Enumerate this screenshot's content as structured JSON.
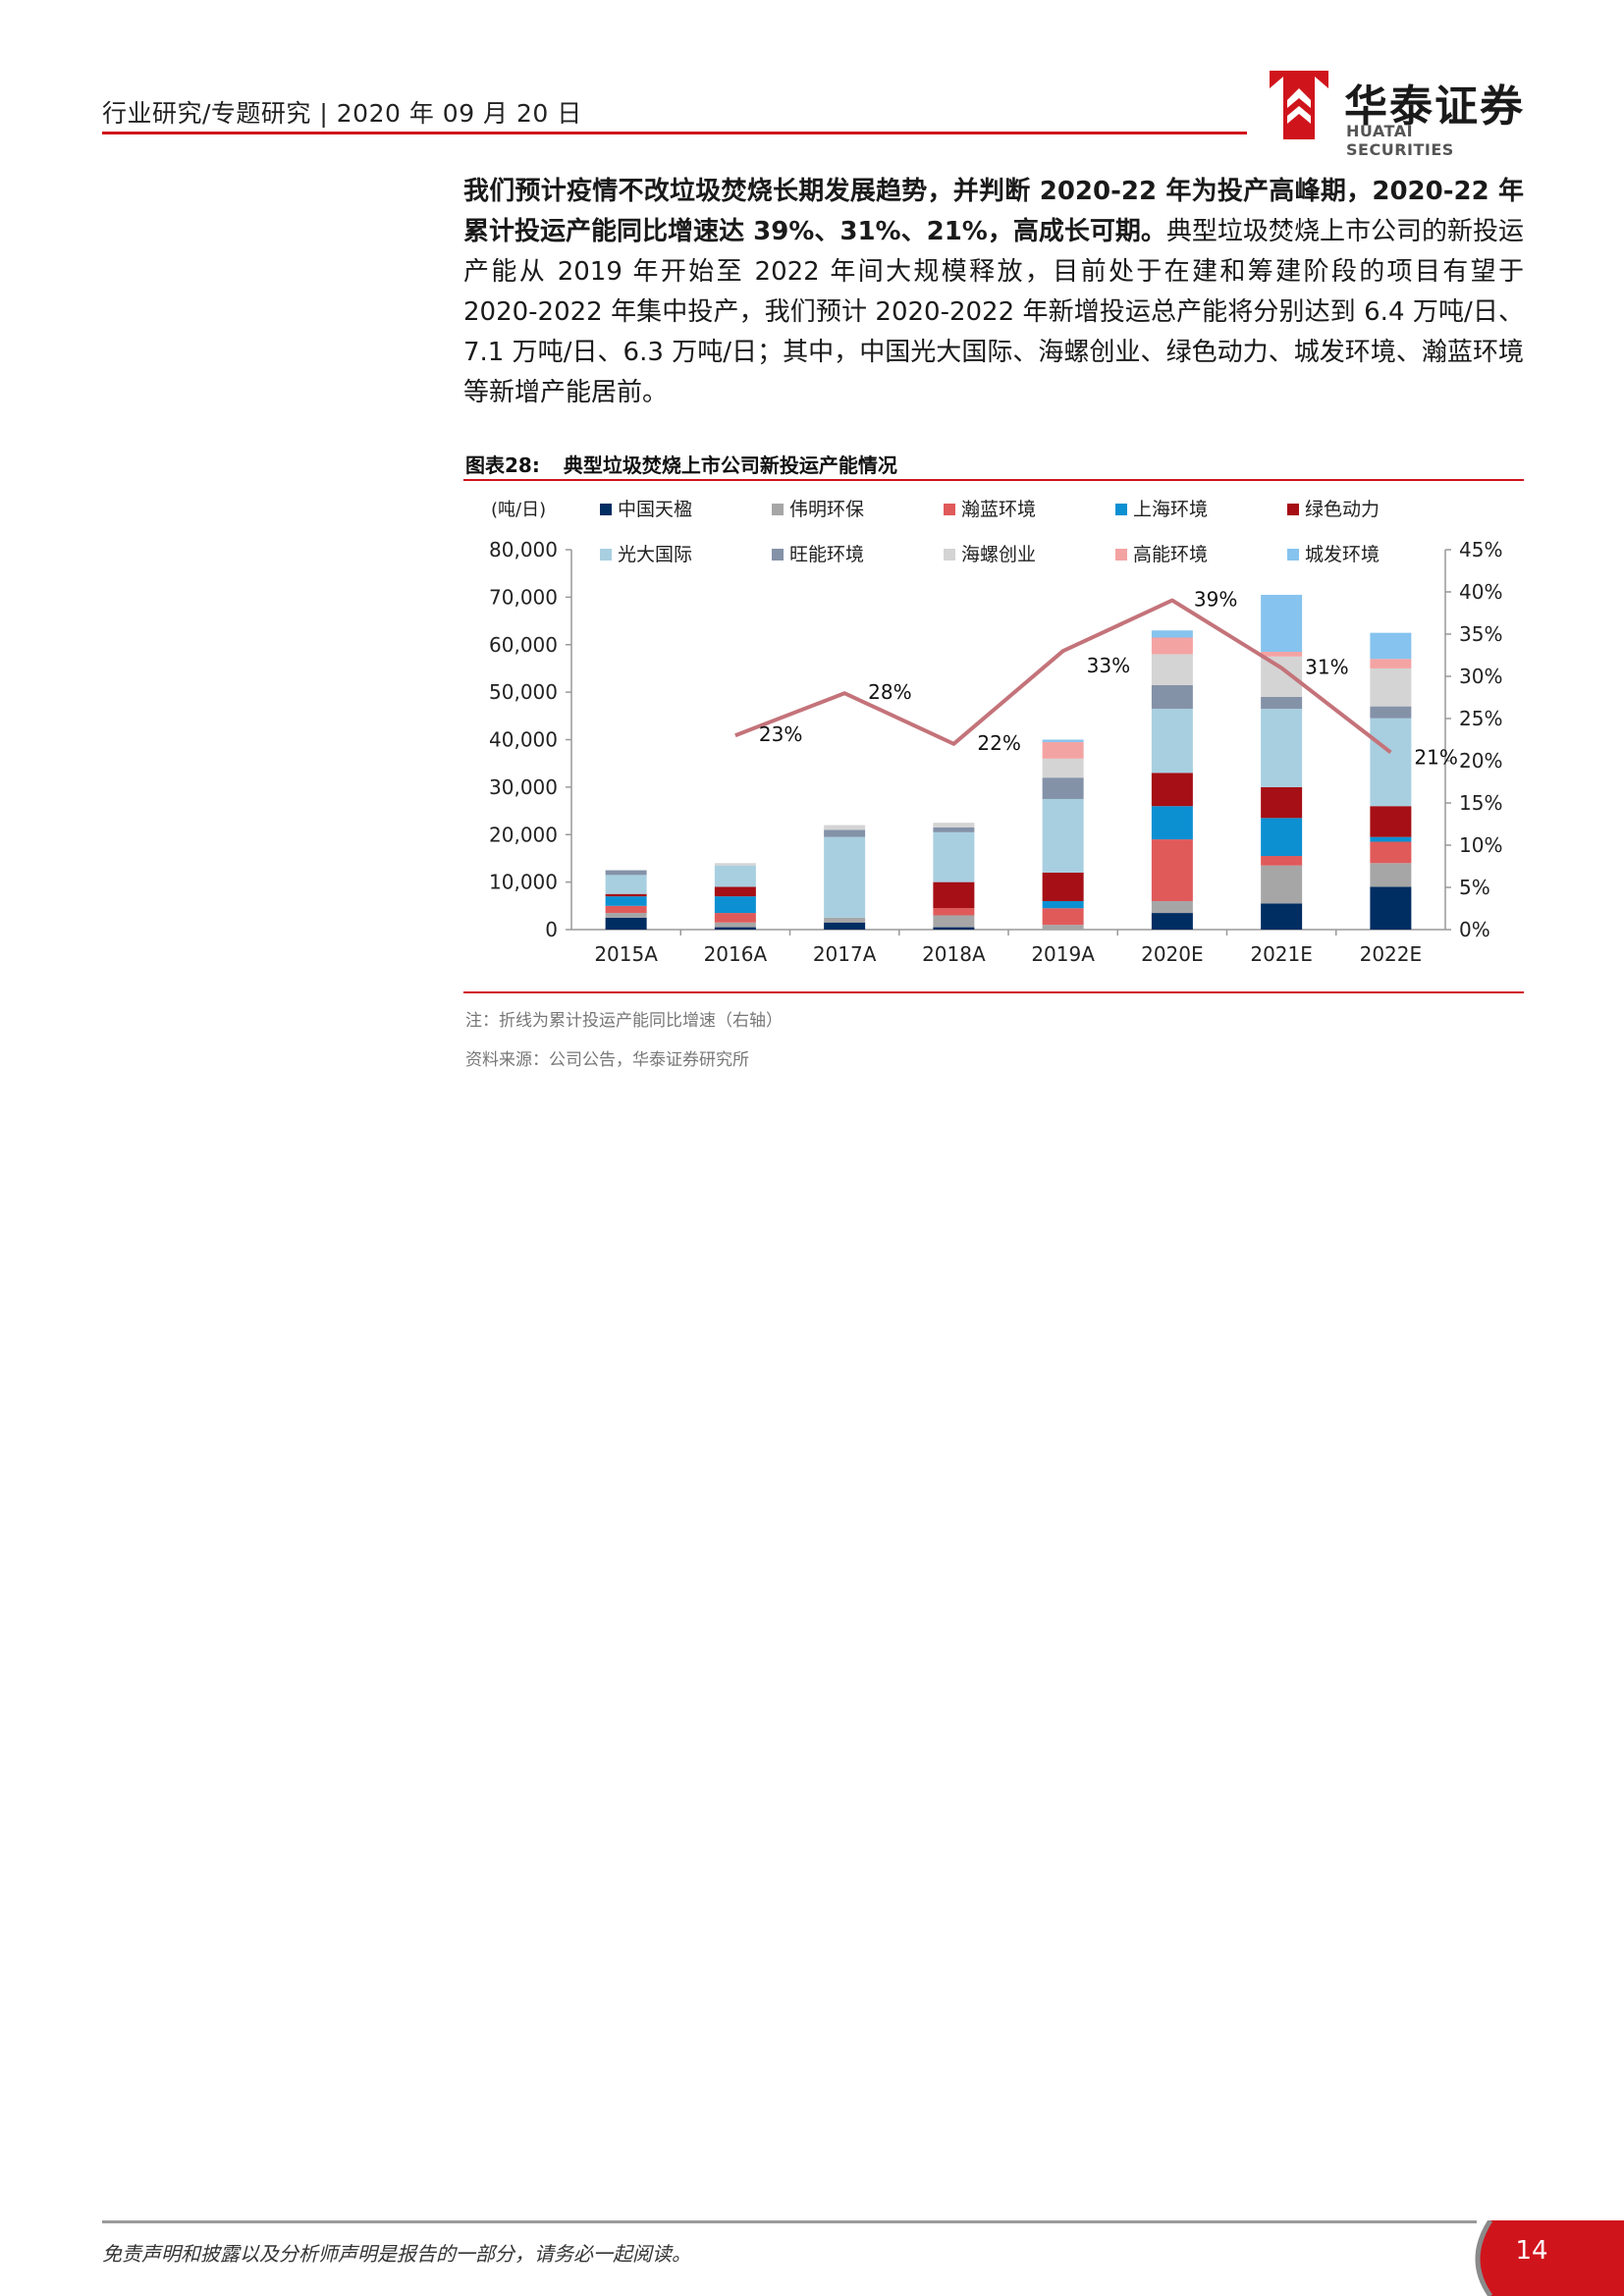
{
  "header": {
    "section": "行业研究/专题研究",
    "date": "2020 年 09 月 20 日"
  },
  "brand": {
    "name_cn": "华泰证券",
    "name_en": "HUATAI SECURITIES",
    "color": "#d0141c"
  },
  "body": {
    "bold_lead": "我们预计疫情不改垃圾焚烧长期发展趋势，并判断 2020-22 年为投产高峰期，2020-22 年累计投运产能同比增速达 39%、31%、21%，高成长可期。",
    "rest": "典型垃圾焚烧上市公司的新投运产能从 2019 年开始至 2022 年间大规模释放，目前处于在建和筹建阶段的项目有望于 2020-2022 年集中投产，我们预计 2020-2022 年新增投运总产能将分别达到 6.4 万吨/日、7.1 万吨/日、6.3 万吨/日；其中，中国光大国际、海螺创业、绿色动力、城发环境、瀚蓝环境等新增产能居前。"
  },
  "figure": {
    "number": "图表28:",
    "title": "典型垃圾焚烧上市公司新投运产能情况",
    "note": "注：折线为累计投运产能同比增速（右轴）",
    "source": "资料来源：公司公告，华泰证券研究所"
  },
  "chart_data": {
    "type": "bar",
    "stacked": true,
    "unit_label": "(吨/日)",
    "categories": [
      "2015A",
      "2016A",
      "2017A",
      "2018A",
      "2019A",
      "2020E",
      "2021E",
      "2022E"
    ],
    "y_left": {
      "range": [
        0,
        80000
      ],
      "ticks": [
        "0",
        "10,000",
        "20,000",
        "30,000",
        "40,000",
        "50,000",
        "60,000",
        "70,000",
        "80,000"
      ]
    },
    "y_right": {
      "range": [
        0,
        45
      ],
      "ticks": [
        "0%",
        "5%",
        "10%",
        "15%",
        "20%",
        "25%",
        "30%",
        "35%",
        "40%",
        "45%"
      ]
    },
    "series": [
      {
        "name": "中国天楹",
        "color": "#002d62",
        "values": [
          2500,
          500,
          1500,
          500,
          0,
          3500,
          5500,
          9000
        ]
      },
      {
        "name": "伟明环保",
        "color": "#a6a6a6",
        "values": [
          1000,
          1000,
          1000,
          2500,
          1000,
          2500,
          8000,
          5000
        ]
      },
      {
        "name": "瀚蓝环境",
        "color": "#e05a5a",
        "values": [
          1500,
          2000,
          0,
          1500,
          3500,
          13000,
          2000,
          4500
        ]
      },
      {
        "name": "上海环境",
        "color": "#0c90d2",
        "values": [
          2000,
          3500,
          0,
          0,
          1500,
          7000,
          8000,
          1000
        ]
      },
      {
        "name": "绿色动力",
        "color": "#a50f15",
        "values": [
          500,
          2000,
          0,
          5500,
          6000,
          7000,
          6500,
          6500
        ]
      },
      {
        "name": "光大国际",
        "color": "#a8cfe0",
        "values": [
          4000,
          4500,
          17000,
          10500,
          15500,
          13500,
          16500,
          18500
        ]
      },
      {
        "name": "旺能环境",
        "color": "#8492a8",
        "values": [
          1000,
          0,
          1500,
          1000,
          4500,
          5000,
          2500,
          2500
        ]
      },
      {
        "name": "海螺创业",
        "color": "#d4d4d4",
        "values": [
          0,
          500,
          1000,
          1000,
          4000,
          6500,
          8500,
          8000
        ]
      },
      {
        "name": "高能环境",
        "color": "#f4a3a3",
        "values": [
          0,
          0,
          0,
          0,
          3500,
          3500,
          1000,
          2000
        ]
      },
      {
        "name": "城发环境",
        "color": "#86c3ee",
        "values": [
          0,
          0,
          0,
          0,
          500,
          1500,
          12000,
          5500
        ]
      }
    ],
    "line": {
      "axis": "right",
      "color": "#c4737a",
      "points": [
        {
          "category": "2016A",
          "value": 23,
          "label": "23%"
        },
        {
          "category": "2017A",
          "value": 28,
          "label": "28%"
        },
        {
          "category": "2018A",
          "value": 22,
          "label": "22%"
        },
        {
          "category": "2019A",
          "value": 33,
          "label": "33%"
        },
        {
          "category": "2020E",
          "value": 39,
          "label": "39%"
        },
        {
          "category": "2021E",
          "value": 31,
          "label": "31%"
        },
        {
          "category": "2022E",
          "value": 21,
          "label": "21%"
        }
      ]
    },
    "legend_position": "top"
  },
  "footer": {
    "disclaimer": "免责声明和披露以及分析师声明是报告的一部分，请务必一起阅读。",
    "page": "14"
  }
}
